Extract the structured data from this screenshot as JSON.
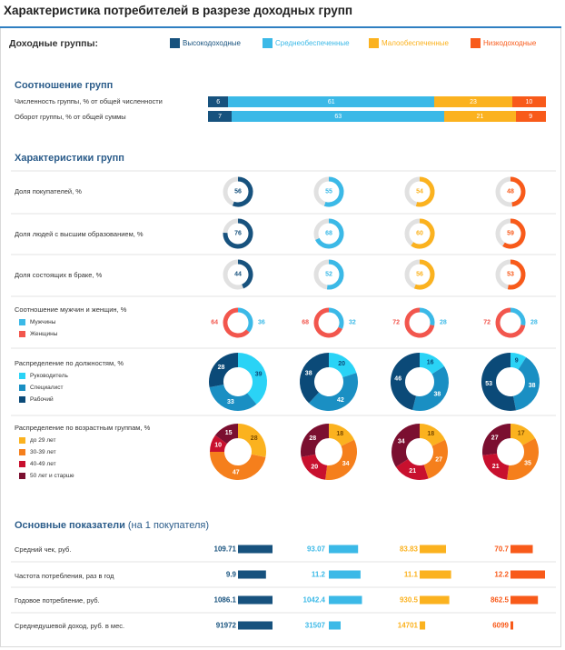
{
  "title": "Характеристика потребителей в разрезе доходных групп",
  "legend": {
    "label": "Доходные группы:",
    "items": [
      {
        "name": "Высокодоходные",
        "color": "#17527e"
      },
      {
        "name": "Среднеобеспеченные",
        "color": "#3bb9e7"
      },
      {
        "name": "Малообеспеченные",
        "color": "#fbb21f"
      },
      {
        "name": "Низкодоходные",
        "color": "#f85a1a"
      }
    ]
  },
  "sections": {
    "ratio": "Соотношение групп",
    "characteristics": "Характеристики групп",
    "indicators": "Основные показатели",
    "indicators_sub": "(на 1 покупателя)"
  },
  "chart_data": [
    {
      "type": "bar",
      "stacked": true,
      "orientation": "horizontal",
      "title": "Соотношение групп",
      "categories": [
        "Численность группы, % от общей численности",
        "Оборот группы, % от общей суммы"
      ],
      "series": [
        {
          "name": "Высокодоходные",
          "values": [
            6,
            7
          ],
          "color": "#17527e"
        },
        {
          "name": "Среднеобеспеченные",
          "values": [
            61,
            63
          ],
          "color": "#3bb9e7"
        },
        {
          "name": "Малообеспеченные",
          "values": [
            23,
            21
          ],
          "color": "#fbb21f"
        },
        {
          "name": "Низкодоходные",
          "values": [
            10,
            9
          ],
          "color": "#f85a1a"
        }
      ]
    },
    {
      "type": "pie",
      "title": "Характеристики групп",
      "groups": [
        "Высокодоходные",
        "Среднеобеспеченные",
        "Малообеспеченные",
        "Низкодоходные"
      ],
      "gauges": [
        {
          "label": "Доля покупателей, %",
          "values": [
            56,
            55,
            54,
            48
          ]
        },
        {
          "label": "Доля людей с высшим образованием, %",
          "values": [
            76,
            68,
            60,
            59
          ]
        },
        {
          "label": "Доля состоящих в браке, %",
          "values": [
            44,
            52,
            56,
            53
          ]
        }
      ],
      "gender": {
        "label": "Соотношение мужчин и женщин, %",
        "legend": [
          {
            "name": "Мужчины",
            "color": "#3bb9e7"
          },
          {
            "name": "Женщины",
            "color": "#f2564d"
          }
        ],
        "men": [
          36,
          32,
          28,
          28
        ],
        "women": [
          64,
          68,
          72,
          72
        ]
      },
      "positions": {
        "label": "Распределение по должностям, %",
        "legend": [
          {
            "name": "Руководитель",
            "color": "#2ad3f6"
          },
          {
            "name": "Специалист",
            "color": "#1a8fc3"
          },
          {
            "name": "Рабочий",
            "color": "#0b4a78"
          }
        ],
        "values": [
          [
            39,
            33,
            28
          ],
          [
            20,
            42,
            38
          ],
          [
            16,
            38,
            46
          ],
          [
            9,
            38,
            53
          ]
        ]
      },
      "ages": {
        "label": "Распределение по возрастным группам, %",
        "legend": [
          {
            "name": "до 29 лет",
            "color": "#fbb21f"
          },
          {
            "name": "30-39 лет",
            "color": "#f57f1c"
          },
          {
            "name": "40-49 лет",
            "color": "#c8102e"
          },
          {
            "name": "50 лет и старше",
            "color": "#7b0f30"
          }
        ],
        "values": [
          [
            28,
            47,
            10,
            15
          ],
          [
            18,
            34,
            20,
            28
          ],
          [
            18,
            27,
            21,
            34
          ],
          [
            17,
            35,
            21,
            27
          ]
        ]
      }
    },
    {
      "type": "bar",
      "orientation": "horizontal",
      "title": "Основные показатели",
      "rows": [
        {
          "label": "Средний чек, руб.",
          "values": [
            "109.71",
            "93.07",
            "83.83",
            "70.7"
          ],
          "numeric": [
            109.71,
            93.07,
            83.83,
            70.7
          ]
        },
        {
          "label": "Частота потребления, раз в год",
          "values": [
            "9.9",
            "11.2",
            "11.1",
            "12.2"
          ],
          "numeric": [
            9.9,
            11.2,
            11.1,
            12.2
          ]
        },
        {
          "label": "Годовое потребление, руб.",
          "values": [
            "1086.1",
            "1042.4",
            "930.5",
            "862.5"
          ],
          "numeric": [
            1086.1,
            1042.4,
            930.5,
            862.5
          ]
        },
        {
          "label": "Среднедушевой доход, руб. в мес.",
          "values": [
            "91972",
            "31507",
            "14701",
            "6099"
          ],
          "numeric": [
            91972,
            31507,
            14701,
            6099
          ]
        }
      ]
    }
  ]
}
